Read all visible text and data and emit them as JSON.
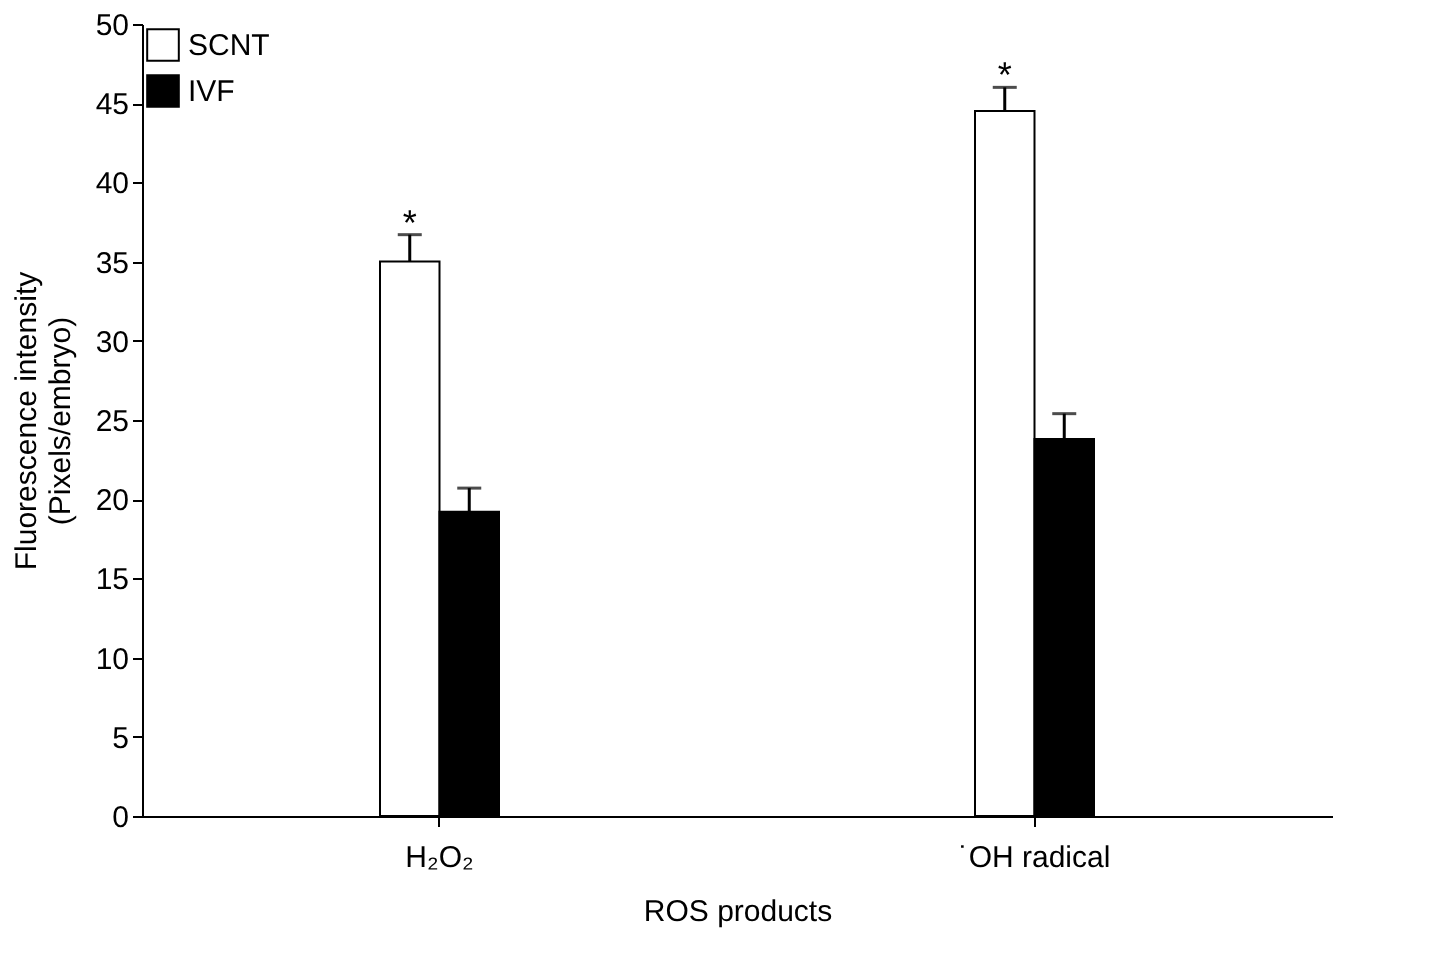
{
  "chart_data": {
    "type": "bar",
    "xlabel": "ROS products",
    "ylabel": "Fluorescence intensity\n(Pixels/embryo)",
    "categories": [
      "H₂O₂",
      "˙OH radical"
    ],
    "series": [
      {
        "name": "SCNT",
        "color": "#ffffff",
        "values": [
          35,
          44.5
        ],
        "errors": [
          [
            35,
            36.7
          ],
          [
            44.5,
            46
          ]
        ]
      },
      {
        "name": "IVF",
        "color": "#000000",
        "values": [
          19.2,
          23.8
        ],
        "errors": [
          [
            19.2,
            20.7
          ],
          [
            23.8,
            25.4
          ]
        ]
      }
    ],
    "ylim": [
      0,
      50
    ],
    "yticks": [
      0,
      5,
      10,
      15,
      20,
      25,
      30,
      35,
      40,
      45,
      50
    ],
    "grid": false,
    "legend": "top left",
    "annotations": [
      "*",
      "*"
    ]
  }
}
